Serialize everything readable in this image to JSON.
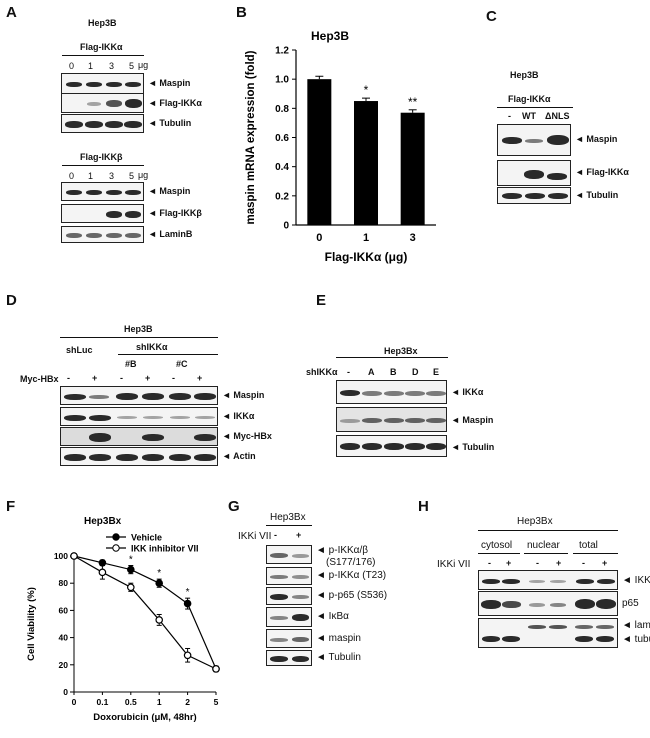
{
  "A": {
    "letter": "A",
    "cell": "Hep3B",
    "top": {
      "title": "Flag-IKKα",
      "doses": [
        "0",
        "1",
        "3",
        "5"
      ],
      "unit": "μg",
      "rows": [
        "◄ Maspin",
        "◄ Flag-IKKα",
        "◄ Tubulin"
      ]
    },
    "bottom": {
      "title": "Flag-IKKβ",
      "doses": [
        "0",
        "1",
        "3",
        "5"
      ],
      "unit": "μg",
      "rows": [
        "◄ Maspin",
        "◄ Flag-IKKβ",
        "◄ LaminB"
      ]
    }
  },
  "B": {
    "letter": "B",
    "cell": "Hep3B",
    "chart_data": {
      "type": "bar",
      "title": "Hep3B",
      "categories": [
        "0",
        "1",
        "3"
      ],
      "values": [
        1.0,
        0.85,
        0.77
      ],
      "errors": [
        0.02,
        0.02,
        0.02
      ],
      "annotations": [
        "",
        "*",
        "**"
      ],
      "ylabel": "maspin mRNA expression (fold)",
      "xlabel": "Flag-IKKα (μg)",
      "ylim": [
        0,
        1.2
      ],
      "yticks": [
        "0",
        "0.2",
        "0.4",
        "0.6",
        "0.8",
        "1.0",
        "1.2"
      ],
      "bar_color": "#000000"
    }
  },
  "C": {
    "letter": "C",
    "cell": "Hep3B",
    "header": "Flag-IKKα",
    "lanes": [
      "-",
      "WT",
      "ΔNLS"
    ],
    "rows": [
      "◄ Maspin",
      "◄ Flag-IKKα",
      "◄ Tubulin"
    ]
  },
  "D": {
    "letter": "D",
    "cell": "Hep3B",
    "groups": [
      "shLuc",
      "shIKKα"
    ],
    "subgroups": [
      "#B",
      "#C"
    ],
    "treat": "Myc-HBx",
    "signs": [
      "-",
      "+",
      "-",
      "+",
      "-",
      "+"
    ],
    "rows": [
      "◄ Maspin",
      "◄ IKKα",
      "◄ Myc-HBx",
      "◄ Actin"
    ]
  },
  "E": {
    "letter": "E",
    "cell": "Hep3Bx",
    "sh": "shIKKα",
    "lanes": [
      "-",
      "A",
      "B",
      "D",
      "E"
    ],
    "rows": [
      "◄ IKKα",
      "◄ Maspin",
      "◄ Tubulin"
    ]
  },
  "F": {
    "letter": "F",
    "chart_data": {
      "type": "line",
      "title": "Hep3Bx",
      "x": [
        "0",
        "0.1",
        "0.5",
        "1",
        "2",
        "5"
      ],
      "series": [
        {
          "name": "Vehicle",
          "values": [
            100,
            95,
            90,
            80,
            65,
            17
          ],
          "errors": [
            0,
            2,
            3,
            3,
            4,
            2
          ],
          "marker": "filled"
        },
        {
          "name": "IKK inhibitor VII",
          "values": [
            100,
            88,
            77,
            53,
            27,
            17
          ],
          "errors": [
            0,
            5,
            3,
            4,
            5,
            2
          ],
          "marker": "open"
        }
      ],
      "annotations": [
        "",
        "",
        "*",
        "*",
        "*",
        ""
      ],
      "ylabel": "Cell Viability (%)",
      "xlabel": "Doxorubicin (μM, 48hr)",
      "ylim": [
        0,
        100
      ],
      "yticks": [
        "0",
        "20",
        "40",
        "60",
        "80",
        "100"
      ],
      "legend": "top-right"
    }
  },
  "G": {
    "letter": "G",
    "cell": "Hep3Bx",
    "treat": "IKKi VII",
    "signs": [
      "-",
      "+"
    ],
    "rows": [
      "◄ p-IKKα/β",
      "(S177/176)",
      "◄ p-IKKα (T23)",
      "◄ p-p65 (S536)",
      "◄ IκBα",
      "◄ maspin",
      "◄ Tubulin"
    ]
  },
  "H": {
    "letter": "H",
    "cell": "Hep3Bx",
    "fractions": [
      "cytosol",
      "nuclear",
      "total"
    ],
    "treat": "IKKi VII",
    "signs": [
      "-",
      "+",
      "-",
      "+",
      "-",
      "+"
    ],
    "rows": [
      "◄ IKKα",
      "p65",
      "◄ laminB",
      "◄ tubulin"
    ]
  }
}
